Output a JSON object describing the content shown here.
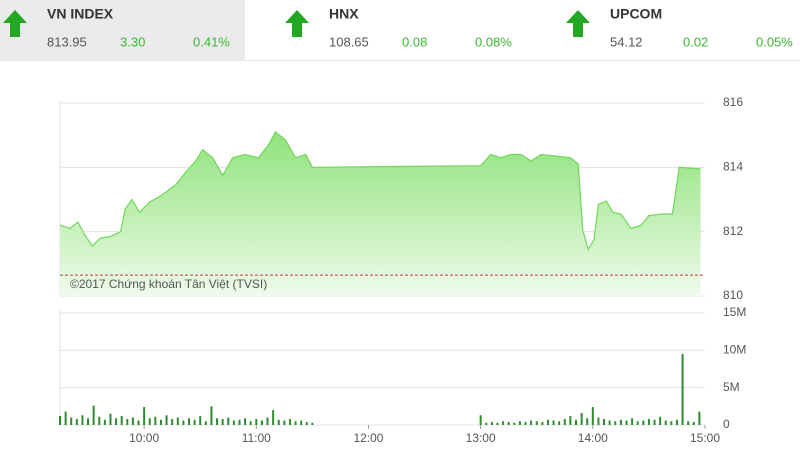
{
  "indices": [
    {
      "name": "VN INDEX",
      "value": "813.95",
      "change": "3.30",
      "percent": "0.41%"
    },
    {
      "name": "HNX",
      "value": "108.65",
      "change": "0.08",
      "percent": "0.08%"
    },
    {
      "name": "UPCOM",
      "value": "54.12",
      "change": "0.02",
      "percent": "0.05%"
    }
  ],
  "chart_data": [
    {
      "type": "area",
      "color": "#74d55c",
      "annotation": "©2017 Chứng khoán Tân Việt (TVSI)",
      "reference": 810.65,
      "x": [
        9.25,
        9.34,
        9.41,
        9.47,
        9.54,
        9.61,
        9.7,
        9.79,
        9.83,
        9.89,
        9.96,
        10.04,
        10.14,
        10.28,
        10.37,
        10.46,
        10.52,
        10.61,
        10.7,
        10.79,
        10.9,
        11.02,
        11.11,
        11.17,
        11.26,
        11.35,
        11.44,
        11.5,
        13.0,
        13.09,
        13.18,
        13.27,
        13.36,
        13.45,
        13.54,
        13.67,
        13.8,
        13.87,
        13.91,
        13.96,
        14.01,
        14.05,
        14.12,
        14.18,
        14.25,
        14.34,
        14.43,
        14.5,
        14.61,
        14.71,
        14.77,
        14.96
      ],
      "values": [
        812.2,
        812.1,
        812.3,
        811.9,
        811.55,
        811.8,
        811.85,
        812.0,
        812.7,
        813.0,
        812.6,
        812.9,
        813.1,
        813.45,
        813.85,
        814.2,
        814.55,
        814.3,
        813.75,
        814.3,
        814.4,
        814.3,
        814.7,
        815.1,
        814.85,
        814.3,
        814.4,
        814.0,
        814.05,
        814.4,
        814.3,
        814.4,
        814.4,
        814.2,
        814.4,
        814.35,
        814.3,
        814.1,
        812.05,
        811.45,
        811.75,
        812.85,
        812.95,
        812.6,
        812.55,
        812.1,
        812.2,
        812.5,
        812.55,
        812.55,
        814.0,
        813.95
      ],
      "xlim": [
        9.25,
        15
      ],
      "ylim": [
        810,
        816
      ],
      "yticks": [
        810,
        812,
        814,
        816
      ],
      "grid": true
    },
    {
      "type": "bar",
      "color": "#2e8b2e",
      "x": [
        9.25,
        9.3,
        9.35,
        9.4,
        9.45,
        9.5,
        9.55,
        9.6,
        9.65,
        9.7,
        9.75,
        9.8,
        9.85,
        9.9,
        9.95,
        10,
        10.05,
        10.1,
        10.15,
        10.2,
        10.25,
        10.3,
        10.35,
        10.4,
        10.45,
        10.5,
        10.55,
        10.6,
        10.65,
        10.7,
        10.75,
        10.8,
        10.85,
        10.9,
        10.95,
        11,
        11.05,
        11.1,
        11.15,
        11.2,
        11.25,
        11.3,
        11.35,
        11.4,
        11.45,
        11.5,
        13,
        13.05,
        13.1,
        13.15,
        13.2,
        13.25,
        13.3,
        13.35,
        13.4,
        13.45,
        13.5,
        13.55,
        13.6,
        13.65,
        13.7,
        13.75,
        13.8,
        13.85,
        13.9,
        13.95,
        14,
        14.05,
        14.1,
        14.15,
        14.2,
        14.25,
        14.3,
        14.35,
        14.4,
        14.45,
        14.5,
        14.55,
        14.6,
        14.65,
        14.7,
        14.75,
        14.8,
        14.85,
        14.9,
        14.95
      ],
      "values": [
        1.2,
        1.8,
        1.0,
        0.8,
        1.3,
        0.9,
        2.6,
        1.1,
        0.7,
        1.5,
        0.9,
        1.2,
        0.8,
        1.0,
        0.6,
        2.4,
        0.9,
        1.1,
        0.7,
        1.3,
        0.8,
        1.0,
        0.6,
        0.9,
        0.7,
        1.2,
        0.5,
        2.5,
        0.9,
        0.8,
        1.0,
        0.6,
        0.7,
        0.9,
        0.5,
        0.8,
        0.6,
        1.0,
        2.0,
        0.7,
        0.6,
        0.8,
        0.5,
        0.6,
        0.4,
        0.3,
        1.3,
        0.3,
        0.4,
        0.3,
        0.5,
        0.4,
        0.3,
        0.5,
        0.4,
        0.6,
        0.5,
        0.4,
        0.7,
        0.6,
        0.5,
        0.8,
        1.2,
        0.7,
        1.6,
        0.9,
        2.4,
        1.0,
        0.8,
        0.6,
        0.5,
        0.7,
        0.6,
        0.9,
        0.5,
        0.6,
        0.8,
        0.7,
        1.1,
        0.6,
        0.5,
        0.7,
        9.5,
        0.5,
        0.4,
        1.8
      ],
      "xlim": [
        9.25,
        15
      ],
      "xticks": [
        {
          "value": 10,
          "label": "10:00"
        },
        {
          "value": 11,
          "label": "11:00"
        },
        {
          "value": 12,
          "label": "12:00"
        },
        {
          "value": 13,
          "label": "13:00"
        },
        {
          "value": 14,
          "label": "14:00"
        },
        {
          "value": 15,
          "label": "15:00"
        }
      ],
      "ylim": [
        0,
        15
      ],
      "yticks": [
        0,
        {
          "value": 5,
          "label": "5M"
        },
        {
          "value": 10,
          "label": "10M"
        },
        {
          "value": 15,
          "label": "15M"
        }
      ],
      "grid": true
    }
  ]
}
